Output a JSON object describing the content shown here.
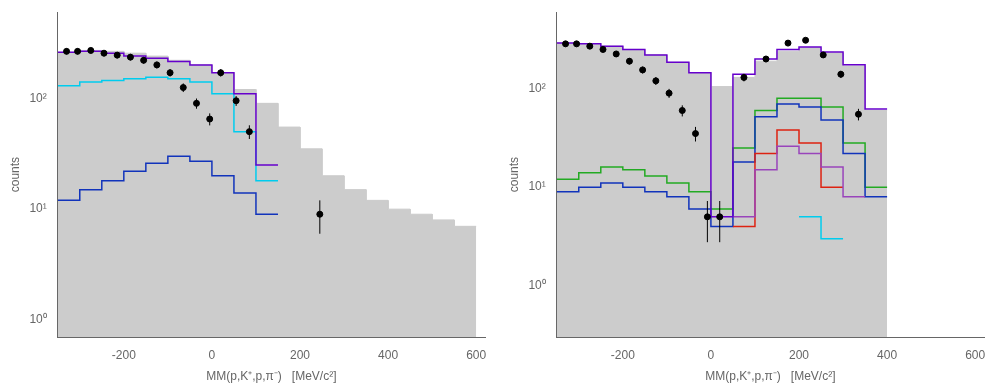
{
  "chart_data": [
    {
      "type": "histogram",
      "x_label": "MM(p,K⁺,p,π⁻)   [MeV/c²]",
      "y_label": "counts",
      "log": "y",
      "grid": false,
      "xlim": [
        -350,
        620
      ],
      "xticks": [
        -200,
        0,
        200,
        400,
        600
      ],
      "ylim": [
        0.7,
        600
      ],
      "yticks": [
        {
          "value": 1,
          "label": "10⁰"
        },
        {
          "value": 10,
          "label": "10¹"
        },
        {
          "value": 100,
          "label": "10²"
        }
      ],
      "series": [
        {
          "type": "area",
          "color": "#cccccc",
          "bins": [
            -350,
            -300,
            -250,
            -200,
            -150,
            -100,
            -50,
            0,
            50,
            100,
            150,
            200,
            250,
            300,
            350,
            400,
            450,
            500,
            550,
            600
          ],
          "values": [
            260,
            270,
            265,
            255,
            240,
            220,
            200,
            170,
            120,
            90,
            55,
            35,
            20,
            15,
            12,
            10,
            9,
            8,
            7
          ]
        },
        {
          "type": "step",
          "color": "#00ccee",
          "bins": [
            -350,
            -300,
            -250,
            -200,
            -150,
            -100,
            -50,
            0,
            50,
            100,
            150
          ],
          "values": [
            130,
            140,
            145,
            150,
            155,
            150,
            140,
            110,
            50,
            18
          ]
        },
        {
          "type": "step",
          "color": "#1133bb",
          "bins": [
            -350,
            -300,
            -250,
            -200,
            -150,
            -100,
            -50,
            0,
            50,
            100,
            150
          ],
          "values": [
            12,
            15,
            18,
            22,
            26,
            30,
            27,
            20,
            14,
            9
          ]
        },
        {
          "type": "step",
          "color": "#6600cc",
          "bins": [
            -350,
            -300,
            -250,
            -200,
            -150,
            -100,
            -50,
            0,
            50,
            100,
            150
          ],
          "values": [
            260,
            265,
            255,
            240,
            230,
            215,
            200,
            170,
            110,
            25
          ]
        },
        {
          "type": "scatter",
          "color": "#000000",
          "marker": "circle",
          "x": [
            -330,
            -305,
            -275,
            -245,
            -215,
            -185,
            -155,
            -125,
            -95,
            -65,
            -35,
            -5,
            20,
            55,
            85,
            245
          ],
          "values": [
            265,
            265,
            270,
            255,
            245,
            235,
            220,
            200,
            170,
            125,
            90,
            65,
            170,
            95,
            50,
            9
          ],
          "errors": [
            16.2788,
            16.2788,
            16.4317,
            15.9687,
            15.6525,
            15.3297,
            14.8324,
            14.1421,
            13.0384,
            11.1803,
            9.4868,
            8.0623,
            13.0384,
            9.7468,
            7.0711,
            3
          ]
        }
      ]
    },
    {
      "type": "histogram",
      "x_label": "MM(p,K⁺,p,π⁻)   [MeV/c²]",
      "y_label": "counts",
      "log": "y",
      "grid": false,
      "xlim": [
        -350,
        620
      ],
      "xticks": [
        -200,
        0,
        200,
        400,
        600
      ],
      "ylim": [
        0.3,
        600
      ],
      "yticks": [
        {
          "value": 1,
          "label": "10⁰"
        },
        {
          "value": 10,
          "label": "10¹"
        },
        {
          "value": 100,
          "label": "10²"
        }
      ],
      "series": [
        {
          "type": "area",
          "color": "#cccccc",
          "bins": [
            -350,
            -300,
            -250,
            -200,
            -150,
            -100,
            -50,
            0,
            50,
            100,
            150,
            200,
            250,
            300,
            350,
            400
          ],
          "values": [
            290,
            285,
            270,
            250,
            220,
            185,
            145,
            105,
            130,
            190,
            240,
            260,
            230,
            170,
            60
          ]
        },
        {
          "type": "step",
          "color": "#22aa22",
          "bins": [
            -350,
            -300,
            -250,
            -200,
            -150,
            -100,
            -50,
            0,
            50,
            100,
            150,
            200,
            250,
            300,
            350,
            400
          ],
          "values": [
            12,
            14,
            16,
            15,
            13,
            11,
            9,
            6,
            25,
            60,
            80,
            80,
            65,
            28,
            10
          ]
        },
        {
          "type": "step",
          "color": "#1133bb",
          "bins": [
            -350,
            -300,
            -250,
            -200,
            -150,
            -100,
            -50,
            0,
            50,
            100,
            150,
            200,
            250,
            300,
            350,
            400
          ],
          "values": [
            9,
            10,
            11,
            10,
            9,
            8,
            6,
            4,
            18,
            52,
            70,
            65,
            48,
            22,
            8
          ]
        },
        {
          "type": "step",
          "color": "#dd2211",
          "bins": [
            50,
            100,
            150,
            200,
            250,
            300
          ],
          "values": [
            4,
            22,
            38,
            28,
            10
          ]
        },
        {
          "type": "step",
          "color": "#9944bb",
          "bins": [
            50,
            100,
            150,
            200,
            250,
            300,
            350
          ],
          "values": [
            5,
            15,
            26,
            22,
            16,
            8
          ]
        },
        {
          "type": "step",
          "color": "#00ccee",
          "bins": [
            200,
            250,
            300
          ],
          "values": [
            5,
            3
          ]
        },
        {
          "type": "step",
          "color": "#6600cc",
          "bins": [
            -350,
            -300,
            -250,
            -200,
            -150,
            -100,
            -50,
            0,
            50,
            100,
            150,
            200,
            250,
            300,
            350,
            400
          ],
          "values": [
            290,
            285,
            270,
            250,
            220,
            185,
            145,
            5,
            140,
            200,
            250,
            265,
            235,
            175,
            62
          ]
        },
        {
          "type": "scatter",
          "color": "#000000",
          "marker": "circle",
          "x": [
            -330,
            -305,
            -275,
            -245,
            -215,
            -185,
            -155,
            -125,
            -95,
            -65,
            -35,
            -8,
            20,
            75,
            125,
            175,
            215,
            255,
            295,
            335
          ],
          "values": [
            285,
            285,
            270,
            250,
            225,
            190,
            155,
            120,
            90,
            60,
            35,
            5,
            5,
            130,
            200,
            290,
            310,
            220,
            140,
            55
          ],
          "errors": [
            16.8819,
            16.8819,
            16.4317,
            15.8114,
            15,
            13.784,
            12.4499,
            10.9545,
            9.4868,
            7.746,
            5.9161,
            2.2361,
            2.2361,
            11.4018,
            14.1421,
            17.0294,
            17.6068,
            14.8324,
            11.8322,
            7.4162
          ]
        }
      ]
    }
  ]
}
